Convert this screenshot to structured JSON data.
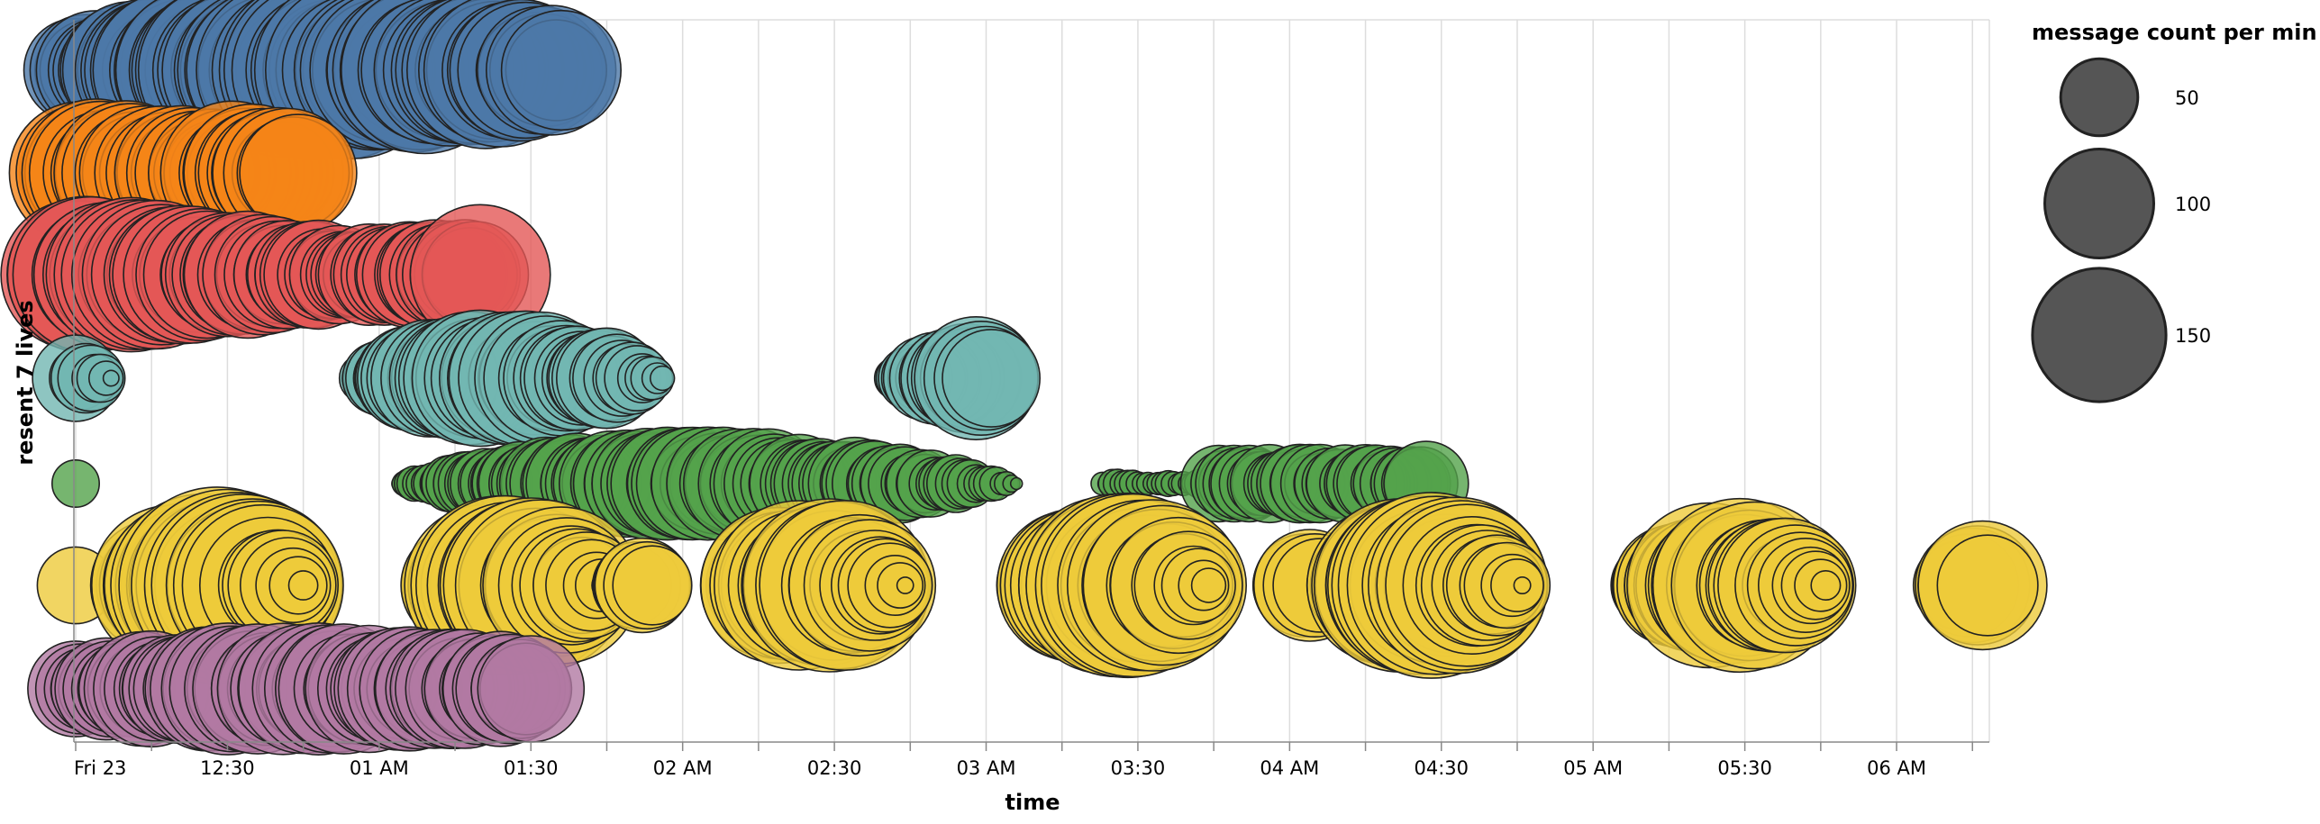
{
  "chart_data": {
    "type": "scatter",
    "title": "",
    "xlabel": "time",
    "ylabel": "resent 7 lives",
    "x_ticks": [
      "Fri 23",
      "12:30",
      "01 AM",
      "01:30",
      "02 AM",
      "02:30",
      "03 AM",
      "03:30",
      "04 AM",
      "04:30",
      "05 AM",
      "05:30",
      "06 AM"
    ],
    "x_range_min": [
      0,
      380
    ],
    "size_legend": {
      "title": "message count per min",
      "values": [
        50,
        100,
        150
      ],
      "labels": [
        "50",
        "100",
        "150"
      ],
      "color": "#555555"
    },
    "grid": true,
    "series": [
      {
        "color": "#4c78a8",
        "end_min": 96,
        "avg": 80,
        "waves": [
          [
            60,
            5
          ],
          [
            160,
            75
          ],
          [
            320,
            90
          ]
        ],
        "last": 120
      },
      {
        "color": "#f58518",
        "end_min": 44,
        "avg": 95,
        "waves": [
          [
            32,
            15
          ],
          [
            160,
            40
          ]
        ],
        "last": 115
      },
      {
        "color": "#e45756",
        "end_min": 80,
        "avg": 120,
        "waves": [
          [
            40,
            8
          ],
          [
            150,
            70
          ]
        ],
        "last": 165
      },
      {
        "color": "#72b7b2",
        "end_min": 181,
        "avg": 32,
        "waves": [
          [
            110,
            120
          ],
          [
            320,
            20
          ]
        ],
        "last": 80
      },
      {
        "color": "#54a24b",
        "end_min": 267,
        "avg": 17,
        "waves": [
          [
            200,
            70
          ]
        ],
        "last": 60,
        "gaps": [
          [
            203,
            226,
            5
          ],
          [
            224,
            232,
            0
          ]
        ],
        "tail": [
          [
            226,
            267,
            42
          ]
        ]
      },
      {
        "color": "#eeca3b",
        "end_min": 378,
        "avg": 45,
        "waves": [
          [
            80,
            20
          ],
          [
            60,
            200
          ]
        ],
        "last": 85,
        "spikes": [
          [
            17,
            110
          ],
          [
            112,
            75
          ],
          [
            151,
            88
          ],
          [
            244,
            105
          ],
          [
            314,
            88
          ]
        ]
      },
      {
        "color": "#b279a2",
        "end_min": 90,
        "avg": 70,
        "waves": [
          [
            90,
            15
          ],
          [
            200,
            50
          ]
        ],
        "last": 95
      }
    ]
  }
}
